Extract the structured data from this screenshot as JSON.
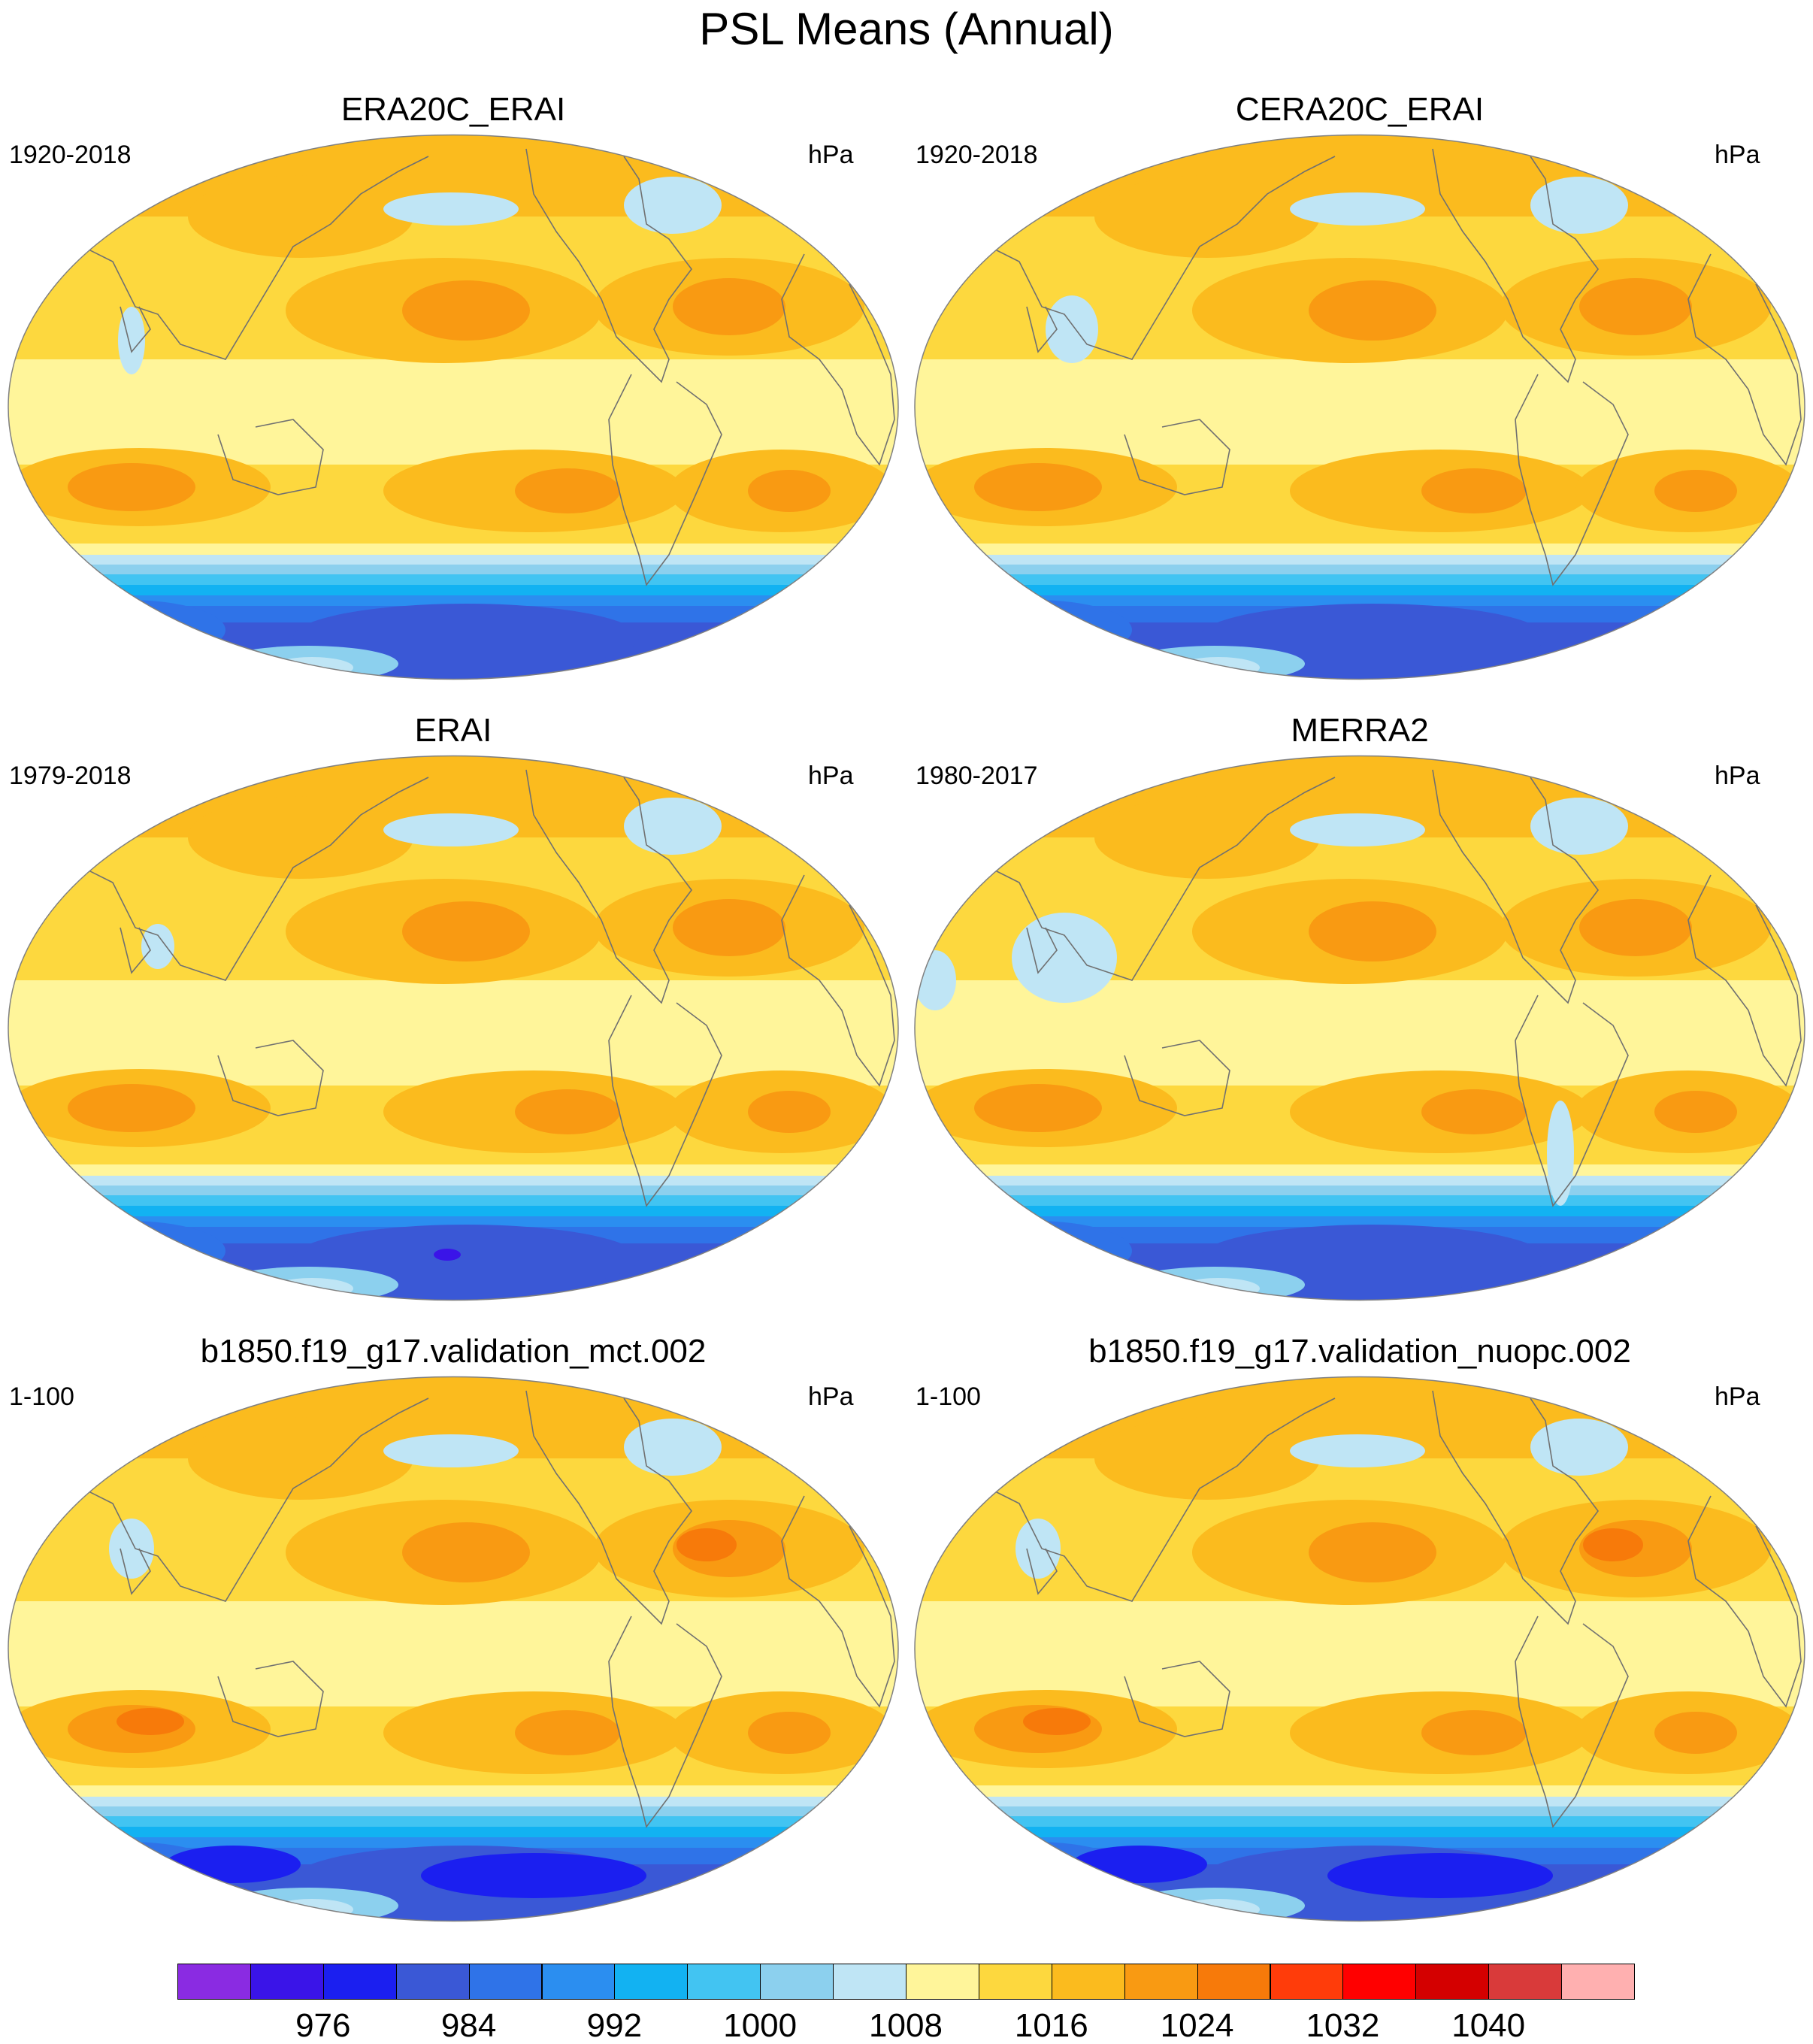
{
  "title": "PSL Means (Annual)",
  "panels": [
    {
      "name": "ERA20C_ERAI",
      "years": "1920-2018",
      "units": "hPa",
      "variant": "era20c"
    },
    {
      "name": "CERA20C_ERAI",
      "years": "1920-2018",
      "units": "hPa",
      "variant": "cera20c"
    },
    {
      "name": "ERAI",
      "years": "1979-2018",
      "units": "hPa",
      "variant": "erai"
    },
    {
      "name": "MERRA2",
      "years": "1980-2017",
      "units": "hPa",
      "variant": "merra2"
    },
    {
      "name": "b1850.f19_g17.validation_mct.002",
      "years": "1-100",
      "units": "hPa",
      "variant": "model"
    },
    {
      "name": "b1850.f19_g17.validation_nuopc.002",
      "years": "1-100",
      "units": "hPa",
      "variant": "model"
    }
  ],
  "colorbar": {
    "colors": [
      "#8a2be2",
      "#3a14e8",
      "#1b1ff0",
      "#3a58d6",
      "#2f73e8",
      "#2b8ef0",
      "#12b2f2",
      "#42c4f2",
      "#8cd0ee",
      "#bfe5f5",
      "#fff59a",
      "#fdd83e",
      "#fbbb1e",
      "#f99a12",
      "#f77a0a",
      "#ff3c0a",
      "#ff0000",
      "#d40000",
      "#d93a3a",
      "#ffb0b0"
    ],
    "labels": [
      "976",
      "984",
      "992",
      "1000",
      "1008",
      "1016",
      "1024",
      "1032",
      "1040"
    ],
    "label_slots": [
      2,
      4,
      6,
      8,
      10,
      12,
      14,
      16,
      18
    ]
  }
}
